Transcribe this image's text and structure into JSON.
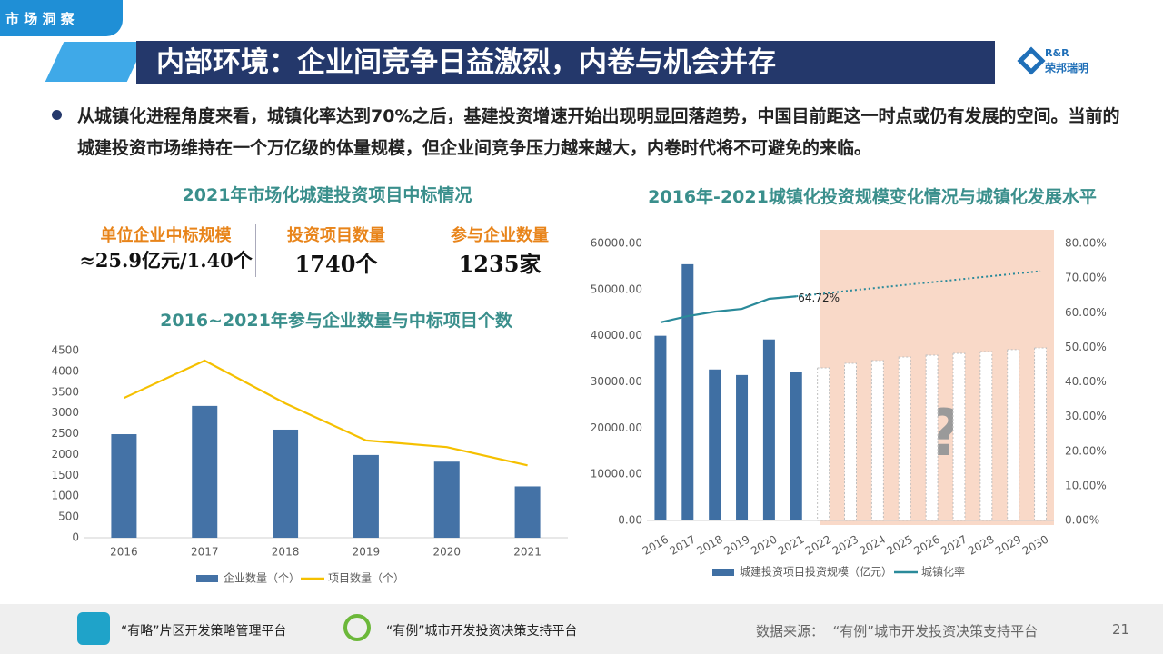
{
  "tag": "市 场 洞 察",
  "title": "内部环境：企业间竞争日益激烈，内卷与机会并存",
  "logo": {
    "mark": "R&R",
    "name": "荣邦瑞明"
  },
  "bullet": "从城镇化进程角度来看，城镇化率达到70%之后，基建投资增速开始出现明显回落趋势，中国目前距这一时点或仍有发展的空间。当前的城建投资市场维持在一个万亿级的体量规模，但企业间竞争压力越来越大，内卷时代将不可避免的来临。",
  "stats_title": "2021年市场化城建投资项目中标情况",
  "stats": [
    {
      "label": "单位企业中标规模",
      "value": "≈25.9亿元/1.40个"
    },
    {
      "label": "投资项目数量",
      "value": "1740个"
    },
    {
      "label": "参与企业数量",
      "value": "1235家"
    }
  ],
  "footer": {
    "platforms": [
      "“有略”片区开发策略管理平台",
      "“有例”城市开发投资决策支持平台"
    ],
    "source": "数据来源：  “有例”城市开发投资决策支持平台",
    "page": "21"
  },
  "chart_data": [
    {
      "type": "combo",
      "title": "2016~2021年参与企业数量与中标项目个数",
      "categories": [
        "2016",
        "2017",
        "2018",
        "2019",
        "2020",
        "2021"
      ],
      "series": [
        {
          "name": "企业数量（个）",
          "kind": "bar",
          "color": "#4472a6",
          "values": [
            2490,
            3170,
            2600,
            1990,
            1830,
            1235
          ]
        },
        {
          "name": "项目数量（个）",
          "kind": "line",
          "color": "#f5c000",
          "values": [
            3360,
            4260,
            3230,
            2340,
            2180,
            1740
          ]
        }
      ],
      "ylim": [
        0,
        4500
      ],
      "yticks": [
        0,
        500,
        1000,
        1500,
        2000,
        2500,
        3000,
        3500,
        4000,
        4500
      ]
    },
    {
      "type": "combo",
      "title": "2016年-2021城镇化投资规模变化情况与城镇化发展水平",
      "annotation": "?",
      "categories": [
        "2016",
        "2017",
        "2018",
        "2019",
        "2020",
        "2021",
        "2022",
        "2023",
        "2024",
        "2025",
        "2026",
        "2027",
        "2028",
        "2029",
        "2030"
      ],
      "series": [
        {
          "name": "城建投资项目投资规模（亿元）",
          "kind": "bar",
          "color": "#3f6fa3",
          "values": [
            40000,
            55500,
            32700,
            31500,
            39200,
            32100,
            null,
            null,
            null,
            null,
            null,
            null,
            null,
            null,
            null
          ]
        },
        {
          "kind": "bar",
          "line_style": "dotted",
          "color": "#bfbfbf",
          "values": [
            null,
            null,
            null,
            null,
            null,
            null,
            33050,
            34030,
            34620,
            35400,
            35800,
            36200,
            36600,
            37000,
            37380
          ]
        },
        {
          "name": "城镇化率",
          "kind": "line",
          "axis": "y2",
          "color": "#2a8a9a",
          "values": [
            57.2,
            59.0,
            60.3,
            61.1,
            64.0,
            64.72,
            null,
            null,
            null,
            null,
            null,
            null,
            null,
            null,
            null
          ],
          "value_labels": [
            null,
            null,
            null,
            null,
            null,
            "64.72%",
            null,
            null,
            null,
            null,
            null,
            null,
            null,
            null,
            null
          ]
        },
        {
          "kind": "line",
          "axis": "y2",
          "line_style": "dotted",
          "color": "#2a8a9a",
          "values": [
            null,
            null,
            null,
            null,
            null,
            64.72,
            65.5,
            66.4,
            67.2,
            68.0,
            68.8,
            69.6,
            70.4,
            71.2,
            72.0
          ]
        }
      ],
      "ylim": [
        0,
        60000
      ],
      "yticks": [
        {
          "value": 0,
          "label": "0.00"
        },
        {
          "value": 10000,
          "label": "10000.00"
        },
        {
          "value": 20000,
          "label": "20000.00"
        },
        {
          "value": 30000,
          "label": "30000.00"
        },
        {
          "value": 40000,
          "label": "40000.00"
        },
        {
          "value": 50000,
          "label": "50000.00"
        },
        {
          "value": 60000,
          "label": "60000.00"
        }
      ],
      "y2lim": [
        0,
        80
      ],
      "y2ticks": [
        {
          "value": 0,
          "label": "0.00%"
        },
        {
          "value": 10,
          "label": "10.00%"
        },
        {
          "value": 20,
          "label": "20.00%"
        },
        {
          "value": 30,
          "label": "30.00%"
        },
        {
          "value": 40,
          "label": "40.00%"
        },
        {
          "value": 50,
          "label": "50.00%"
        },
        {
          "value": 60,
          "label": "60.00%"
        },
        {
          "value": 70,
          "label": "70.00%"
        },
        {
          "value": 80,
          "label": "80.00%"
        }
      ]
    }
  ]
}
